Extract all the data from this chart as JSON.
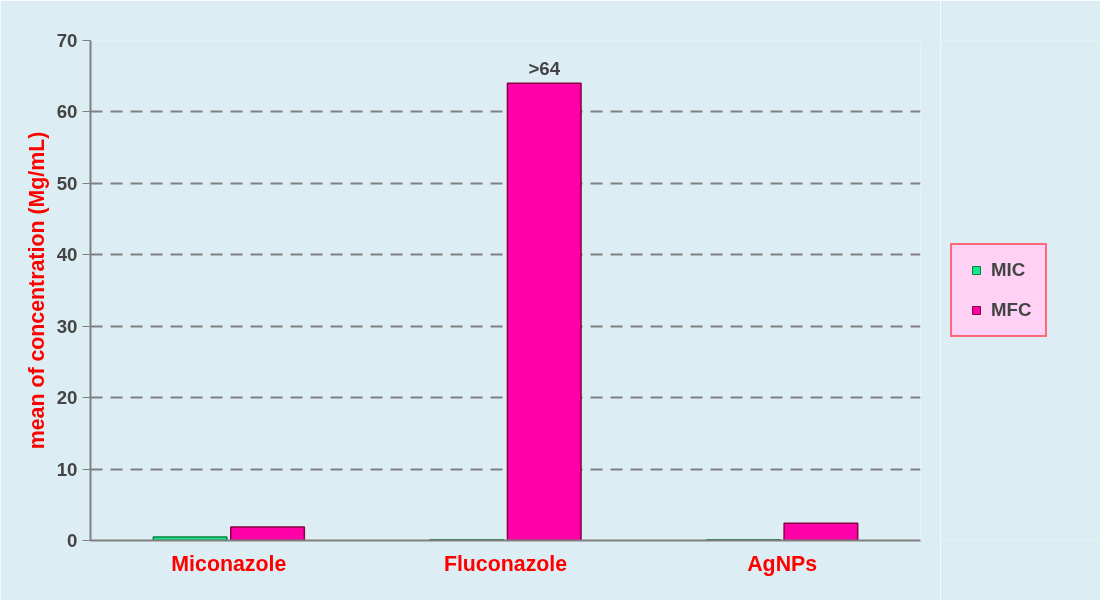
{
  "chart_data": {
    "type": "bar",
    "ylabel": "mean of concentration (Mg/mL)",
    "categories": [
      "Miconazole",
      "Fluconazole",
      "AgNPs"
    ],
    "series": [
      {
        "name": "MIC",
        "color": "#11e888",
        "values": [
          0.5,
          0.1,
          0.1
        ]
      },
      {
        "name": "MFC",
        "color": "#ff00a8",
        "values": [
          1.9,
          64,
          2.4
        ]
      }
    ],
    "ylim": [
      0,
      70
    ],
    "yticks": [
      0,
      10,
      20,
      30,
      40,
      50,
      60,
      70
    ],
    "grid": "y",
    "legend": "right",
    "annotations": [
      {
        "text": ">64",
        "x": "Fluconazole",
        "y": 64
      }
    ]
  }
}
